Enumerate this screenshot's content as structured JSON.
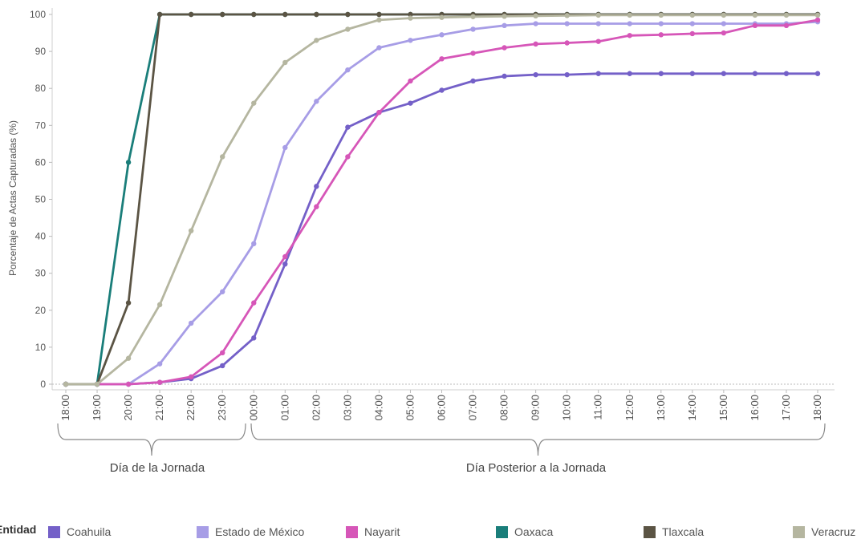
{
  "chart_data": {
    "type": "line",
    "ylabel": "Porcentaje de Actas Capturadas (%)",
    "ylim": [
      0,
      100
    ],
    "yticks": [
      0,
      10,
      20,
      30,
      40,
      50,
      60,
      70,
      80,
      90,
      100
    ],
    "x": [
      "18:00",
      "19:00",
      "20:00",
      "21:00",
      "22:00",
      "23:00",
      "00:00",
      "01:00",
      "02:00",
      "03:00",
      "04:00",
      "05:00",
      "06:00",
      "07:00",
      "08:00",
      "09:00",
      "10:00",
      "11:00",
      "12:00",
      "13:00",
      "14:00",
      "15:00",
      "16:00",
      "17:00",
      "18:00"
    ],
    "grid": false,
    "period_labels": [
      "Día de la Jornada",
      "Día Posterior a la Jornada"
    ],
    "legend_title": "Entidad",
    "series": [
      {
        "name": "Coahuila",
        "color": "#7460c8",
        "values": [
          0,
          0,
          0,
          0.5,
          1.5,
          5,
          12.5,
          32.5,
          53.5,
          69.5,
          73.5,
          76,
          79.5,
          82,
          83.3,
          83.7,
          83.7,
          84,
          84,
          84,
          84,
          84,
          84,
          84,
          84
        ]
      },
      {
        "name": "Estado de México",
        "color": "#a79de6",
        "values": [
          0,
          0,
          0,
          5.5,
          16.5,
          25,
          38,
          64,
          76.5,
          85,
          91,
          93,
          94.5,
          96,
          97,
          97.5,
          97.5,
          97.5,
          97.5,
          97.5,
          97.5,
          97.5,
          97.5,
          97.5,
          98
        ]
      },
      {
        "name": "Nayarit",
        "color": "#d656b8",
        "values": [
          0,
          0,
          0,
          0.5,
          2,
          8.5,
          22,
          34.5,
          48,
          61.5,
          73.5,
          82,
          88,
          89.5,
          91,
          92,
          92.3,
          92.7,
          94.3,
          94.5,
          94.8,
          95,
          97,
          97,
          98.5
        ]
      },
      {
        "name": "Oaxaca",
        "color": "#1a7e7a",
        "values": [
          0,
          0,
          60,
          100,
          100,
          100,
          100,
          100,
          100,
          100,
          100,
          100,
          100,
          100,
          100,
          100,
          100,
          100,
          100,
          100,
          100,
          100,
          100,
          100,
          100
        ]
      },
      {
        "name": "Tlaxcala",
        "color": "#5b5444",
        "values": [
          0,
          0,
          22,
          100,
          100,
          100,
          100,
          100,
          100,
          100,
          100,
          100,
          100,
          100,
          100,
          100,
          100,
          100,
          100,
          100,
          100,
          100,
          100,
          100,
          100
        ]
      },
      {
        "name": "Veracruz",
        "color": "#b5b6a0",
        "values": [
          0,
          0,
          7,
          21.5,
          41.5,
          61.5,
          76,
          87,
          93,
          96,
          98.5,
          99,
          99.2,
          99.4,
          99.5,
          99.6,
          99.7,
          99.8,
          99.8,
          99.8,
          99.8,
          99.8,
          99.8,
          99.8,
          99.8
        ]
      }
    ]
  }
}
